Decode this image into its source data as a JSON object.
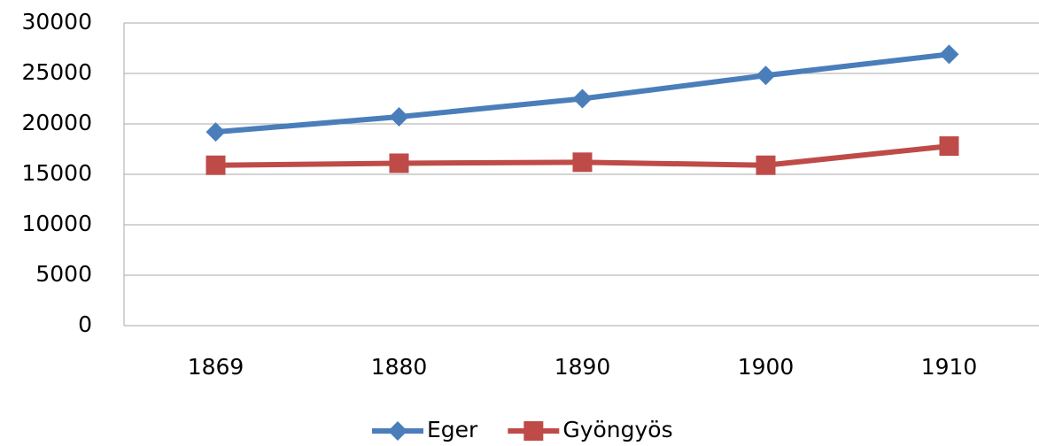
{
  "chart_data": {
    "type": "line",
    "categories": [
      "1869",
      "1880",
      "1890",
      "1900",
      "1910"
    ],
    "series": [
      {
        "name": "Eger",
        "color": "#4a7ebb",
        "marker": "diamond",
        "values": [
          19200,
          20700,
          22500,
          24800,
          26900
        ]
      },
      {
        "name": "Gyöngyös",
        "color": "#be4b48",
        "marker": "square",
        "values": [
          15900,
          16100,
          16200,
          15900,
          17800
        ]
      }
    ],
    "ylim": [
      0,
      30000
    ],
    "yticks": [
      0,
      5000,
      10000,
      15000,
      20000,
      25000,
      30000
    ],
    "grid": true,
    "legend": "bottom"
  }
}
